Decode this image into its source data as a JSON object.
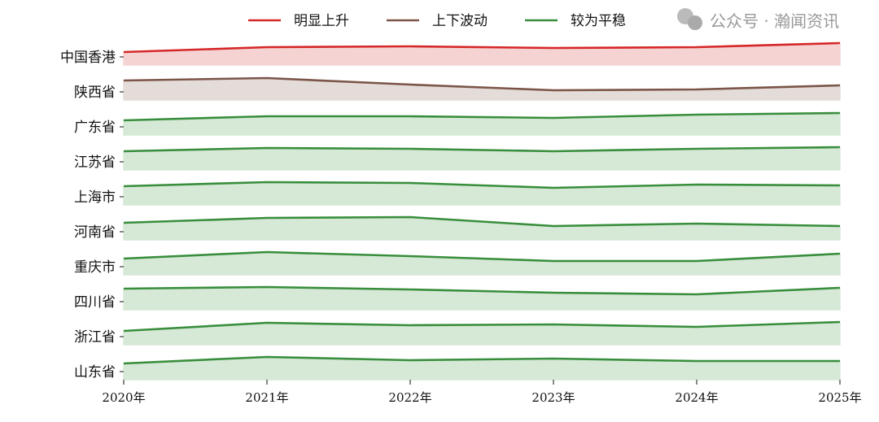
{
  "chart_data": {
    "type": "area",
    "subtype": "ridgeline",
    "x": [
      "2020年",
      "2021年",
      "2022年",
      "2023年",
      "2024年",
      "2025年"
    ],
    "ylim": [
      0,
      30
    ],
    "grid": false,
    "legend": {
      "placement": "top-center",
      "entries": [
        {
          "name": "明显上升",
          "color": "#d62728"
        },
        {
          "name": "上下波动",
          "color": "#7b5548"
        },
        {
          "name": "较为平稳",
          "color": "#388e3c"
        }
      ]
    },
    "series": [
      {
        "name": "中国香港",
        "category": 0,
        "values": [
          16,
          22,
          23,
          21,
          22,
          27
        ]
      },
      {
        "name": "陕西省",
        "category": 1,
        "values": [
          24,
          27,
          19,
          12,
          13,
          18
        ]
      },
      {
        "name": "广东省",
        "category": 2,
        "values": [
          18,
          23,
          23,
          21,
          25,
          27
        ]
      },
      {
        "name": "江苏省",
        "category": 2,
        "values": [
          23,
          27,
          26,
          23,
          26,
          28
        ]
      },
      {
        "name": "上海市",
        "category": 2,
        "values": [
          23,
          28,
          27,
          21,
          25,
          24
        ]
      },
      {
        "name": "河南省",
        "category": 2,
        "values": [
          21,
          27,
          28,
          17,
          20,
          17
        ]
      },
      {
        "name": "重庆市",
        "category": 2,
        "values": [
          20,
          28,
          23,
          17,
          17,
          26
        ]
      },
      {
        "name": "四川省",
        "category": 2,
        "values": [
          26,
          28,
          25,
          21,
          19,
          27
        ]
      },
      {
        "name": "浙江省",
        "category": 2,
        "values": [
          17,
          27,
          24,
          25,
          22,
          28
        ]
      },
      {
        "name": "山东省",
        "category": 2,
        "values": [
          20,
          28,
          24,
          26,
          23,
          23
        ]
      }
    ],
    "fill_colors": [
      "#f5d3d3",
      "#e4dcd9",
      "#d6e8d6"
    ]
  },
  "watermark": "公众号 · 瀚闻资讯"
}
